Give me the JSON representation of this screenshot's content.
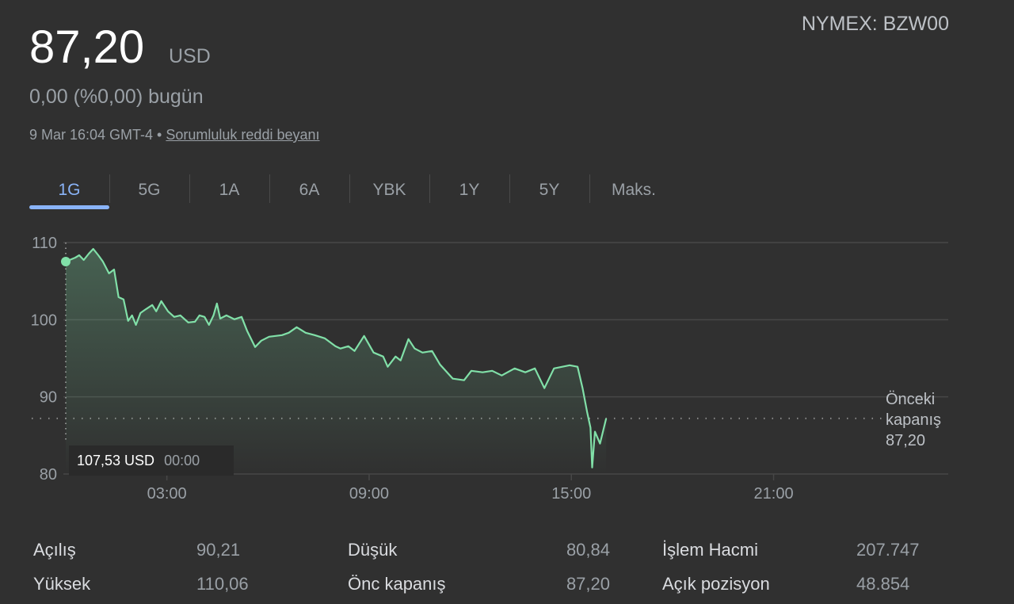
{
  "header": {
    "price": "87,20",
    "currency": "USD",
    "symbol": "NYMEX: BZW00",
    "change": "0,00 (%0,00) bugün",
    "timestamp": "9 Mar 16:04 GMT-4 •",
    "disclaimer_link": "Sorumluluk reddi beyanı"
  },
  "tabs": [
    {
      "label": "1G",
      "active": true
    },
    {
      "label": "5G"
    },
    {
      "label": "1A"
    },
    {
      "label": "6A"
    },
    {
      "label": "YBK"
    },
    {
      "label": "1Y"
    },
    {
      "label": "5Y"
    },
    {
      "label": "Maks."
    }
  ],
  "tooltip": {
    "value": "107,53 USD",
    "time": "00:00"
  },
  "previous_close": {
    "label_line1": "Önceki",
    "label_line2": "kapanış",
    "value": "87,20"
  },
  "stats": [
    {
      "label": "Açılış",
      "value": "90,21"
    },
    {
      "label": "Yüksek",
      "value": "110,06"
    },
    {
      "label": "Düşük",
      "value": "80,84"
    },
    {
      "label": "Önc kapanış",
      "value": "87,20"
    },
    {
      "label": "İşlem Hacmi",
      "value": "207.747"
    },
    {
      "label": "Açık pozisyon",
      "value": "48.854"
    }
  ],
  "colors": {
    "line": "#81e0a8",
    "active_tab": "#8ab4f8",
    "background": "#303030"
  },
  "chart_data": {
    "type": "area",
    "ylim": [
      80,
      110
    ],
    "xlim": [
      "00:00",
      "24:00"
    ],
    "yticks": [
      "110",
      "100",
      "90",
      "80"
    ],
    "ytick_values": [
      110,
      100,
      90,
      80
    ],
    "xticks": [
      "03:00",
      "09:00",
      "15:00",
      "21:00"
    ],
    "grid": true,
    "reference_line": 87.2,
    "x": [
      "00:00",
      "00:17",
      "00:24",
      "00:32",
      "00:41",
      "00:49",
      "00:58",
      "01:06",
      "01:17",
      "01:26",
      "01:34",
      "01:43",
      "01:51",
      "01:58",
      "02:05",
      "02:13",
      "02:23",
      "02:34",
      "02:41",
      "02:50",
      "03:02",
      "03:13",
      "03:24",
      "03:38",
      "03:50",
      "03:58",
      "04:07",
      "04:15",
      "04:23",
      "04:29",
      "04:35",
      "04:46",
      "05:00",
      "05:13",
      "05:23",
      "05:37",
      "05:48",
      "06:02",
      "06:25",
      "06:37",
      "06:51",
      "07:07",
      "07:23",
      "07:41",
      "08:00",
      "08:09",
      "08:23",
      "08:34",
      "08:51",
      "09:08",
      "09:25",
      "09:33",
      "09:47",
      "09:56",
      "10:10",
      "10:21",
      "10:35",
      "10:52",
      "11:06",
      "11:29",
      "11:49",
      "12:02",
      "12:22",
      "12:39",
      "12:56",
      "13:19",
      "13:38",
      "13:55",
      "14:12",
      "14:29",
      "14:57",
      "15:11",
      "15:20",
      "15:28",
      "15:34",
      "15:37",
      "15:42",
      "15:51",
      "16:02"
    ],
    "y": [
      107.53,
      108.05,
      108.36,
      107.74,
      108.56,
      109.18,
      108.36,
      107.54,
      106.0,
      106.51,
      102.92,
      102.62,
      99.85,
      100.56,
      99.33,
      100.87,
      101.38,
      101.9,
      101.08,
      102.41,
      101.08,
      100.36,
      100.56,
      99.64,
      99.74,
      100.56,
      100.36,
      99.33,
      100.56,
      102.1,
      100.15,
      100.56,
      100.05,
      100.36,
      98.51,
      96.46,
      97.28,
      97.79,
      98.0,
      98.31,
      99.03,
      98.31,
      98.0,
      97.59,
      96.56,
      96.26,
      96.56,
      95.95,
      97.9,
      95.74,
      95.23,
      93.9,
      95.23,
      94.72,
      97.49,
      96.26,
      95.74,
      95.95,
      94.21,
      92.36,
      92.15,
      93.38,
      93.18,
      93.38,
      92.77,
      93.69,
      93.18,
      93.69,
      91.13,
      93.69,
      94.1,
      93.9,
      91.13,
      88.05,
      86.0,
      80.84,
      85.49,
      83.95,
      87.2
    ]
  }
}
